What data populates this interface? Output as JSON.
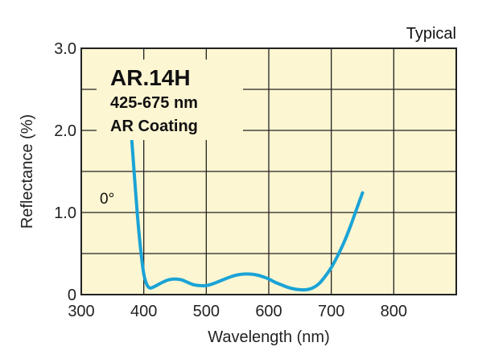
{
  "chart_data": {
    "type": "line",
    "title": "AR.14H",
    "subtitle_lines": [
      "425-675 nm",
      "AR Coating"
    ],
    "corner_note": "Typical",
    "angle_label": "0°",
    "xlabel": "Wavelength (nm)",
    "ylabel": "Reflectance (%)",
    "xlim": [
      300,
      900
    ],
    "ylim": [
      0,
      3.0
    ],
    "x_ticks": [
      {
        "value": 300,
        "label": "300"
      },
      {
        "value": 400,
        "label": "400"
      },
      {
        "value": 500,
        "label": "500"
      },
      {
        "value": 600,
        "label": "600"
      },
      {
        "value": 700,
        "label": "700"
      },
      {
        "value": 800,
        "label": "800"
      }
    ],
    "y_ticks": [
      {
        "value": 0,
        "label": "0"
      },
      {
        "value": 1.0,
        "label": "1.0"
      },
      {
        "value": 2.0,
        "label": "2.0"
      },
      {
        "value": 3.0,
        "label": "3.0"
      }
    ],
    "grid": true,
    "colors": {
      "plot_background": "#fcf6d2",
      "grid": "#222222",
      "line": "#1aa3d6"
    },
    "series": [
      {
        "x": [
          380,
          385,
          390,
          395,
          400,
          405,
          410,
          415,
          420,
          430,
          440,
          450,
          460,
          470,
          480,
          490,
          500,
          510,
          520,
          530,
          540,
          550,
          560,
          570,
          580,
          590,
          600,
          610,
          620,
          630,
          640,
          650,
          660,
          670,
          680,
          690,
          700,
          710,
          720,
          730,
          740,
          750
        ],
        "y": [
          1.97,
          1.45,
          0.95,
          0.55,
          0.25,
          0.12,
          0.08,
          0.09,
          0.11,
          0.15,
          0.18,
          0.19,
          0.18,
          0.15,
          0.12,
          0.11,
          0.11,
          0.13,
          0.16,
          0.19,
          0.22,
          0.24,
          0.25,
          0.25,
          0.24,
          0.22,
          0.19,
          0.15,
          0.12,
          0.09,
          0.07,
          0.06,
          0.06,
          0.08,
          0.13,
          0.22,
          0.33,
          0.47,
          0.63,
          0.82,
          1.03,
          1.24
        ]
      }
    ]
  }
}
